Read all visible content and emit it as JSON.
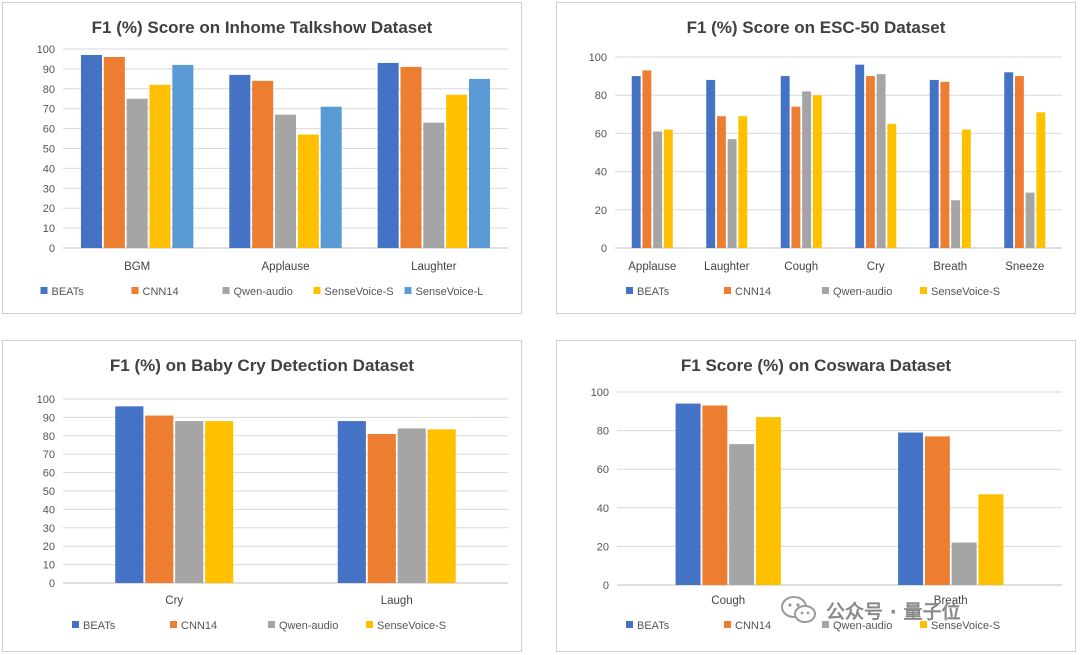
{
  "colors": {
    "BEATs": "#4472c4",
    "CNN14": "#ed7d31",
    "Qwen-audio": "#a5a5a5",
    "SenseVoice-S": "#ffc000",
    "SenseVoice-L": "#5b9bd5",
    "grid": "#d9d9d9",
    "axis": "#bfbfbf"
  },
  "chart_data": [
    {
      "type": "bar",
      "title": "F1 (%) Score on Inhome Talkshow Dataset",
      "categories": [
        "BGM",
        "Applause",
        "Laughter"
      ],
      "ylim": [
        0,
        100
      ],
      "yticks": [
        0,
        10,
        20,
        30,
        40,
        50,
        60,
        70,
        80,
        90,
        100
      ],
      "grid": true,
      "legend": "bottom",
      "series": [
        {
          "name": "BEATs",
          "values": [
            97,
            87,
            93
          ]
        },
        {
          "name": "CNN14",
          "values": [
            96,
            84,
            91
          ]
        },
        {
          "name": "Qwen-audio",
          "values": [
            75,
            67,
            63
          ]
        },
        {
          "name": "SenseVoice-S",
          "values": [
            82,
            57,
            77
          ]
        },
        {
          "name": "SenseVoice-L",
          "values": [
            92,
            71,
            85
          ]
        }
      ]
    },
    {
      "type": "bar",
      "title": "F1 (%) Score on ESC-50 Dataset",
      "categories": [
        "Applause",
        "Laughter",
        "Cough",
        "Cry",
        "Breath",
        "Sneeze"
      ],
      "ylim": [
        0,
        100
      ],
      "yticks": [
        0,
        20,
        40,
        60,
        80,
        100
      ],
      "grid": true,
      "legend": "bottom",
      "series": [
        {
          "name": "BEATs",
          "values": [
            90,
            88,
            90,
            96,
            88,
            92
          ]
        },
        {
          "name": "CNN14",
          "values": [
            93,
            69,
            74,
            90,
            87,
            90
          ]
        },
        {
          "name": "Qwen-audio",
          "values": [
            61,
            57,
            82,
            91,
            25,
            29
          ]
        },
        {
          "name": "SenseVoice-S",
          "values": [
            62,
            69,
            80,
            65,
            62,
            71
          ]
        }
      ]
    },
    {
      "type": "bar",
      "title": "F1 (%) on Baby Cry Detection Dataset",
      "categories": [
        "Cry",
        "Laugh"
      ],
      "ylim": [
        0,
        100
      ],
      "yticks": [
        0,
        10,
        20,
        30,
        40,
        50,
        60,
        70,
        80,
        90,
        100
      ],
      "grid": true,
      "legend": "bottom",
      "series": [
        {
          "name": "BEATs",
          "values": [
            96,
            88
          ]
        },
        {
          "name": "CNN14",
          "values": [
            91,
            81
          ]
        },
        {
          "name": "Qwen-audio",
          "values": [
            88,
            84
          ]
        },
        {
          "name": "SenseVoice-S",
          "values": [
            88,
            83.5
          ]
        }
      ]
    },
    {
      "type": "bar",
      "title": "F1 Score (%) on Coswara Dataset",
      "categories": [
        "Cough",
        "Breath"
      ],
      "ylim": [
        0,
        100
      ],
      "yticks": [
        0,
        20,
        40,
        60,
        80,
        100
      ],
      "grid": true,
      "legend": "bottom",
      "series": [
        {
          "name": "BEATs",
          "values": [
            94,
            79
          ]
        },
        {
          "name": "CNN14",
          "values": [
            93,
            77
          ]
        },
        {
          "name": "Qwen-audio",
          "values": [
            73,
            22
          ]
        },
        {
          "name": "SenseVoice-S",
          "values": [
            87,
            47
          ]
        }
      ]
    }
  ],
  "watermark": {
    "text": "公众号 · 量子位",
    "icon": "wechat-icon"
  }
}
